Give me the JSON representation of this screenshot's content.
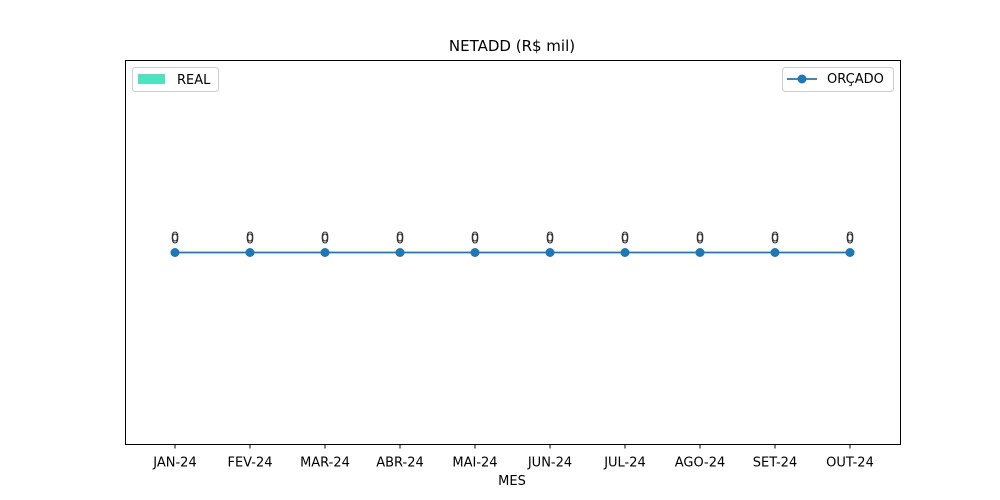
{
  "chart_data": {
    "type": "line",
    "title": "NETADD (R$ mil)",
    "xlabel": "MES",
    "ylabel": "",
    "categories": [
      "JAN-24",
      "FEV-24",
      "MAR-24",
      "ABR-24",
      "MAI-24",
      "JUN-24",
      "JUL-24",
      "AGO-24",
      "SET-24",
      "OUT-24"
    ],
    "series": [
      {
        "name": "REAL",
        "type": "bar",
        "color": "#4ee2c0",
        "values": [
          0,
          0,
          0,
          0,
          0,
          0,
          0,
          0,
          0,
          0
        ],
        "labels": [
          "0",
          "0",
          "0",
          "0",
          "0",
          "0",
          "0",
          "0",
          "0",
          "0"
        ]
      },
      {
        "name": "ORÇADO",
        "type": "line",
        "marker": "circle",
        "color": "#1f77b4",
        "values": [
          0,
          0,
          0,
          0,
          0,
          0,
          0,
          0,
          0,
          0
        ],
        "labels": [
          "0",
          "0",
          "0",
          "0",
          "0",
          "0",
          "0",
          "0",
          "0",
          "0"
        ]
      }
    ],
    "ylim": [
      -0.055,
      0.055
    ],
    "y_ticks_visible": false,
    "grid": false,
    "legends": [
      {
        "series": "REAL",
        "placement": "top-left"
      },
      {
        "series": "ORÇADO",
        "placement": "top-right"
      }
    ]
  }
}
